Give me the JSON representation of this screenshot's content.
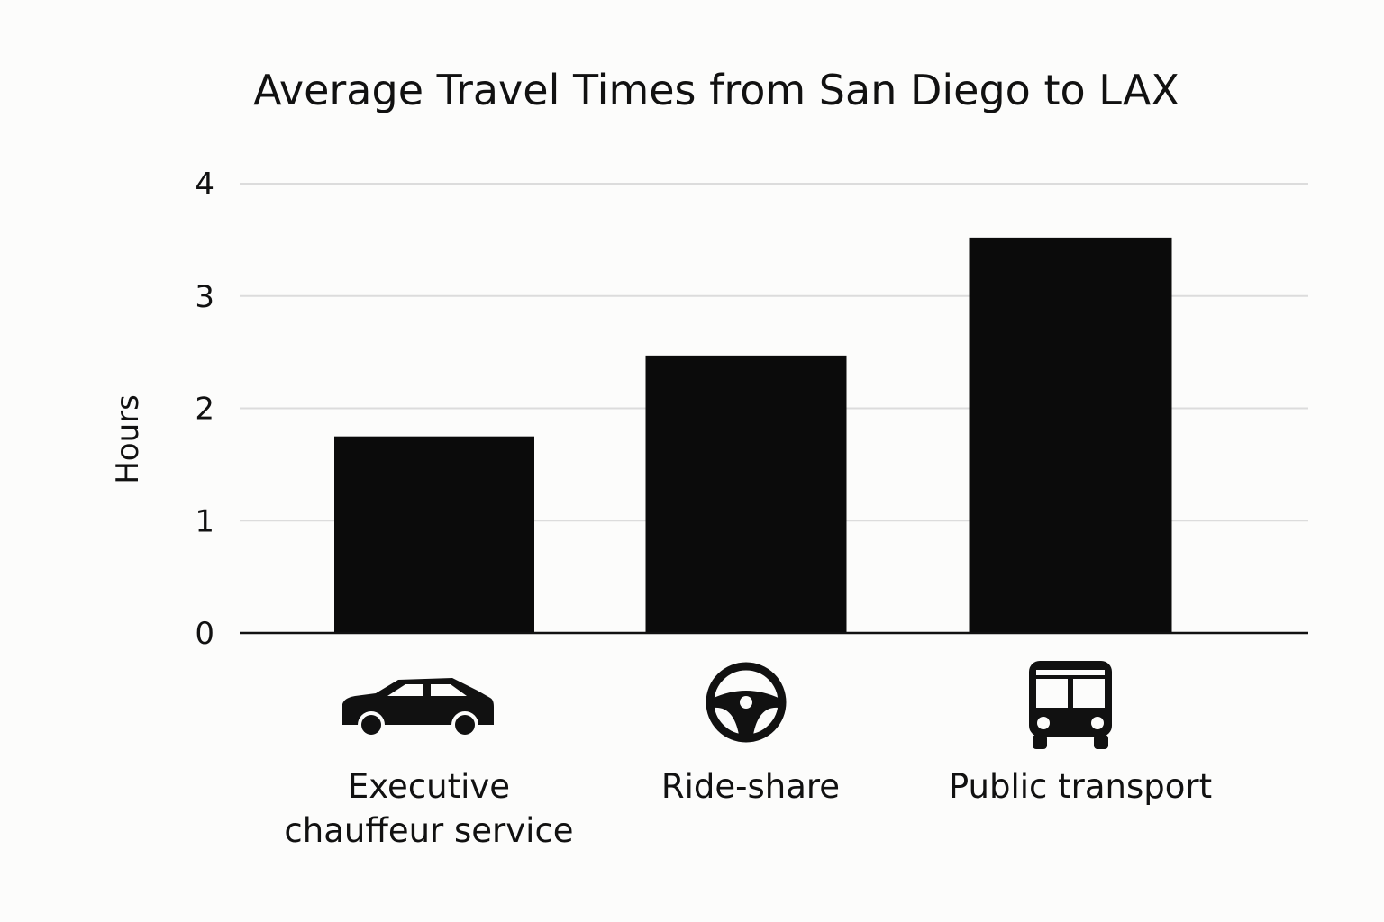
{
  "chart_data": {
    "type": "bar",
    "title": "Average Travel Times from San Diego to LAX",
    "xlabel": "",
    "ylabel": "Hours",
    "ylim": [
      0,
      4
    ],
    "yticks": [
      "0",
      "1",
      "2",
      "3",
      "4"
    ],
    "grid": true,
    "categories": [
      {
        "lines": [
          "Executive",
          "chauffeur service"
        ],
        "icon": "car-icon"
      },
      {
        "lines": [
          "Ride-share"
        ],
        "icon": "steering-wheel-icon"
      },
      {
        "lines": [
          "Public transport"
        ],
        "icon": "bus-icon"
      }
    ],
    "values": [
      1.75,
      2.47,
      3.52
    ],
    "colors": {
      "bar": "#0b0b0b",
      "grid": "#dcdcdc",
      "axis": "#111111",
      "background": "#fcfcfb"
    }
  }
}
